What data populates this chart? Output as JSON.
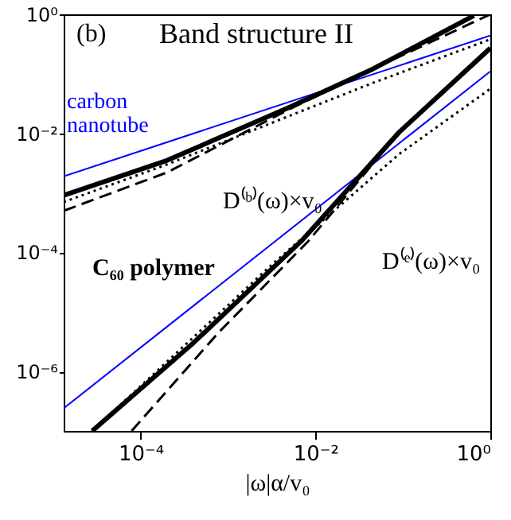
{
  "chart_data": {
    "type": "line",
    "xlabel": "|ω|α/v₀",
    "log": "xy",
    "grid": false,
    "marker": "none",
    "xlim": [
      1.32e-05,
      1
    ],
    "ylim": [
      1e-07,
      1
    ],
    "xticks": [
      {
        "value": 0.0001,
        "label": "10⁻⁴"
      },
      {
        "value": 0.01,
        "label": "10⁻²"
      },
      {
        "value": 1,
        "label": "10⁰"
      }
    ],
    "yticks": [
      {
        "value": 1e-06,
        "label": "10⁻⁶"
      },
      {
        "value": 0.0001,
        "label": "10⁻⁴"
      },
      {
        "value": 0.01,
        "label": "10⁻²"
      },
      {
        "value": 1,
        "label": "10⁰"
      }
    ],
    "annotations": [
      "(b)",
      "Band structure II",
      "carbon nanotube",
      "D⁽ᵇ⁾(ω)×v₀",
      "C₆₀ polymer",
      "D⁽ᵉ⁾(ω)×v₀"
    ],
    "series": [
      {
        "color": "#0000ff",
        "line_style": "solid",
        "x": [
          1.32e-05,
          1
        ],
        "values": [
          0.0019,
          0.44
        ]
      },
      {
        "color": "#000000",
        "line_style": "solid",
        "x": [
          1.32e-05,
          0.0002,
          0.0052,
          0.045,
          0.65
        ],
        "values": [
          0.00091,
          0.0035,
          0.028,
          0.12,
          0.95
        ]
      },
      {
        "color": "#000000",
        "line_style": "dashed",
        "x": [
          1.32e-05,
          0.0002,
          0.0052,
          0.045,
          1
        ],
        "values": [
          0.0005,
          0.0022,
          0.026,
          0.12,
          1.0
        ]
      },
      {
        "color": "#000000",
        "line_style": "dotted",
        "x": [
          1.32e-05,
          0.0002,
          0.0052,
          0.045,
          1
        ],
        "values": [
          0.0007,
          0.003,
          0.02,
          0.07,
          0.38
        ]
      },
      {
        "color": "#0000ff",
        "line_style": "solid",
        "x": [
          1.32e-05,
          1
        ],
        "values": [
          2.4e-07,
          0.11
        ]
      },
      {
        "color": "#000000",
        "line_style": "solid",
        "x": [
          2.8e-05,
          0.0004,
          0.0069,
          0.091,
          1
        ],
        "values": [
          1e-07,
          3e-06,
          0.000155,
          0.0105,
          0.27
        ]
      },
      {
        "color": "#000000",
        "line_style": "dashed",
        "x": [
          7.9e-05,
          0.00078,
          0.0083,
          0.091,
          1
        ],
        "values": [
          1e-07,
          4.5e-06,
          0.000155,
          0.0105,
          0.27
        ]
      },
      {
        "color": "#000000",
        "line_style": "dotted",
        "x": [
          2.8e-05,
          0.0032,
          0.091,
          1
        ],
        "values": [
          1e-07,
          6.3e-05,
          0.0045,
          0.056
        ]
      }
    ]
  }
}
